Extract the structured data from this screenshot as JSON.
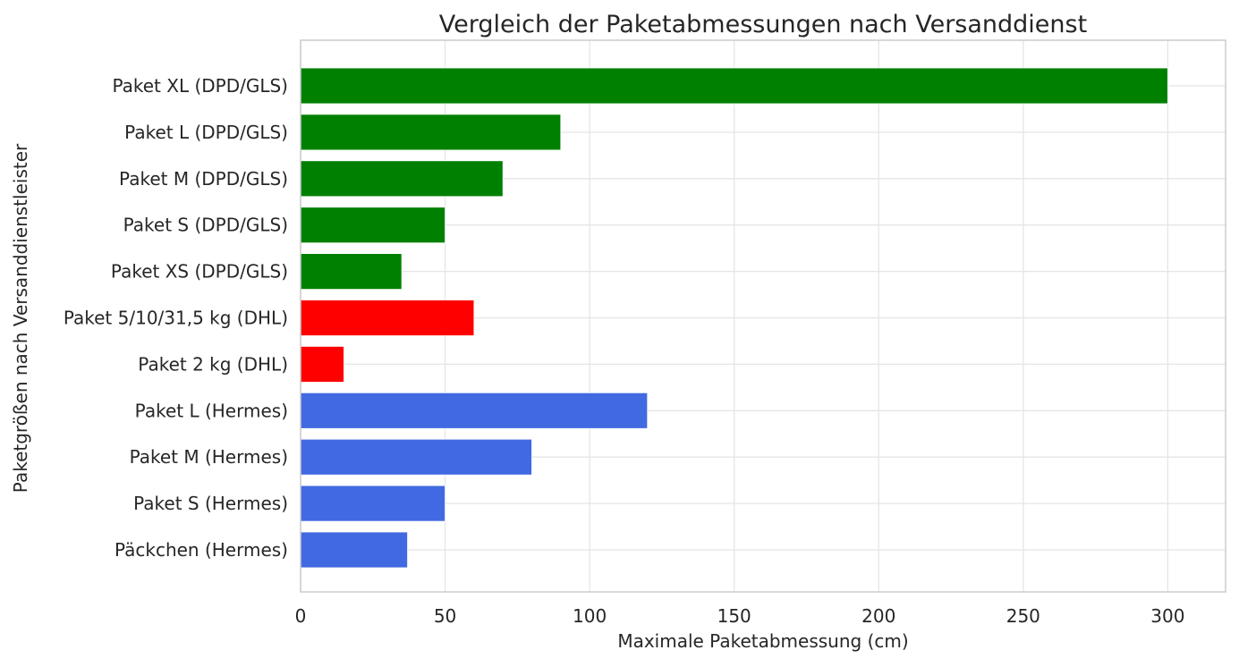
{
  "chart_data": {
    "type": "bar",
    "orientation": "horizontal",
    "title": "Vergleich der Paketabmessungen nach Versanddienst",
    "xlabel": "Maximale Paketabmessung (cm)",
    "ylabel": "Paketgrößen nach Versanddienstleister",
    "xlim": [
      0,
      320
    ],
    "xticks": [
      0,
      50,
      100,
      150,
      200,
      250,
      300
    ],
    "grid": true,
    "categories": [
      "Paket XL (DPD/GLS)",
      "Paket L (DPD/GLS)",
      "Paket M (DPD/GLS)",
      "Paket S (DPD/GLS)",
      "Paket XS (DPD/GLS)",
      "Paket 5/10/31,5 kg (DHL)",
      "Paket 2 kg (DHL)",
      "Paket L (Hermes)",
      "Paket M (Hermes)",
      "Paket S (Hermes)",
      "Päckchen (Hermes)"
    ],
    "values": [
      300,
      90,
      70,
      50,
      35,
      60,
      15,
      120,
      80,
      50,
      37
    ],
    "colors": [
      "#008000",
      "#008000",
      "#008000",
      "#008000",
      "#008000",
      "#ff0000",
      "#ff0000",
      "#4169e1",
      "#4169e1",
      "#4169e1",
      "#4169e1"
    ]
  }
}
